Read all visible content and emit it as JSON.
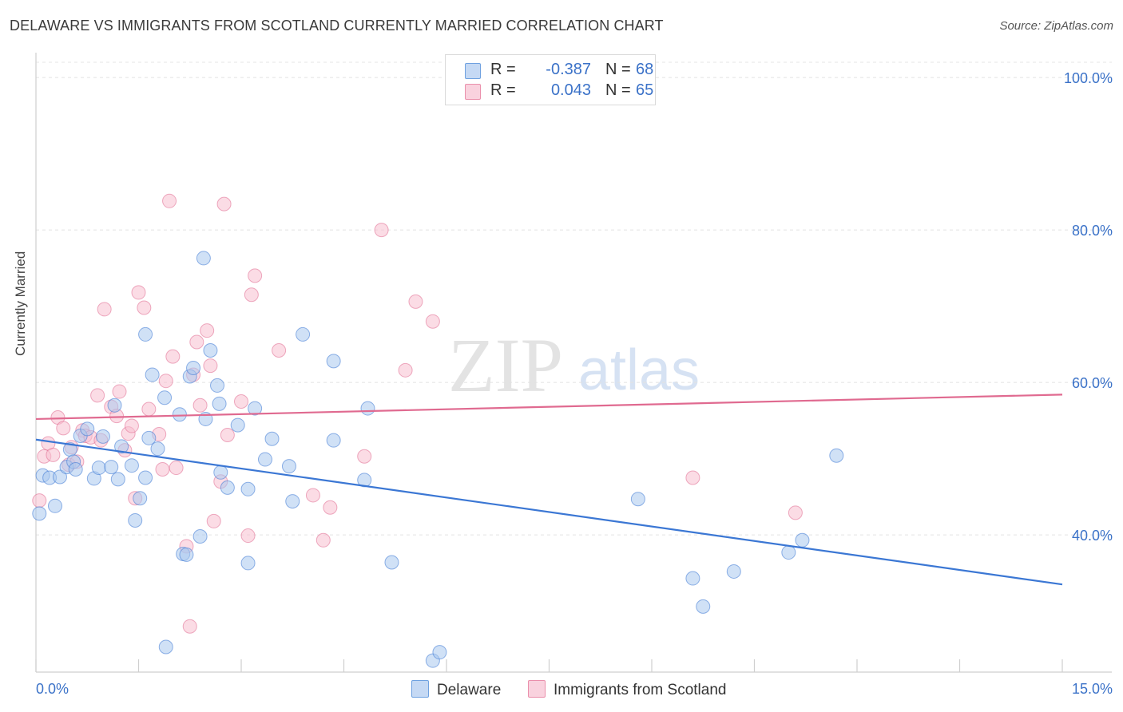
{
  "header": {
    "title": "DELAWARE VS IMMIGRANTS FROM SCOTLAND CURRENTLY MARRIED CORRELATION CHART",
    "source": "Source: ZipAtlas.com"
  },
  "watermark": {
    "zip": "ZIP",
    "atlas": "atlas"
  },
  "legend": {
    "rows": [
      {
        "r_label": "R =",
        "r_value": "-0.387",
        "n_label": "N =",
        "n_value": "68",
        "color": "#6fa1e0",
        "fill": "#c5d9f4"
      },
      {
        "r_label": "R =",
        "r_value": "0.043",
        "n_label": "N =",
        "n_value": "65",
        "color": "#ea8fab",
        "fill": "#f9d2de"
      }
    ]
  },
  "chart_data": {
    "type": "scatter",
    "title": "DELAWARE VS IMMIGRANTS FROM SCOTLAND CURRENTLY MARRIED CORRELATION CHART",
    "xlabel": "",
    "ylabel": "Currently Married",
    "xlim": [
      0,
      15
    ],
    "ylim": [
      22,
      102
    ],
    "x_tick_labels": [
      "0.0%",
      "15.0%"
    ],
    "y_ticks": [
      40,
      60,
      80,
      100
    ],
    "y_tick_labels": [
      "40.0%",
      "60.0%",
      "80.0%",
      "100.0%"
    ],
    "grid": true,
    "legend_position": "top-center",
    "series": [
      {
        "name": "Delaware",
        "color": "#3b77d4",
        "fill": "#a9c8ef",
        "trend": {
          "x": [
            0.0,
            15.0
          ],
          "y": [
            52.5,
            33.5
          ]
        },
        "points": [
          [
            0.05,
            42.8
          ],
          [
            0.1,
            47.8
          ],
          [
            0.2,
            47.5
          ],
          [
            0.28,
            43.8
          ],
          [
            0.35,
            47.6
          ],
          [
            0.45,
            48.9
          ],
          [
            0.5,
            51.2
          ],
          [
            0.55,
            49.6
          ],
          [
            0.58,
            48.6
          ],
          [
            0.65,
            53.0
          ],
          [
            0.75,
            53.9
          ],
          [
            0.85,
            47.4
          ],
          [
            0.92,
            48.8
          ],
          [
            0.98,
            52.9
          ],
          [
            1.1,
            48.9
          ],
          [
            1.15,
            57.0
          ],
          [
            1.2,
            47.3
          ],
          [
            1.25,
            51.6
          ],
          [
            1.4,
            49.1
          ],
          [
            1.45,
            41.9
          ],
          [
            1.52,
            44.8
          ],
          [
            1.6,
            47.5
          ],
          [
            1.6,
            66.3
          ],
          [
            1.65,
            52.7
          ],
          [
            1.7,
            61.0
          ],
          [
            1.78,
            51.3
          ],
          [
            1.88,
            58.0
          ],
          [
            1.9,
            25.3
          ],
          [
            2.1,
            55.8
          ],
          [
            2.15,
            37.5
          ],
          [
            2.2,
            37.4
          ],
          [
            2.25,
            60.8
          ],
          [
            2.3,
            61.9
          ],
          [
            2.4,
            39.8
          ],
          [
            2.45,
            76.3
          ],
          [
            2.48,
            55.2
          ],
          [
            2.55,
            64.2
          ],
          [
            2.65,
            59.6
          ],
          [
            2.68,
            57.2
          ],
          [
            2.7,
            48.2
          ],
          [
            2.8,
            46.2
          ],
          [
            2.95,
            54.4
          ],
          [
            3.1,
            46.0
          ],
          [
            3.1,
            36.3
          ],
          [
            3.2,
            56.6
          ],
          [
            3.35,
            49.9
          ],
          [
            3.45,
            52.6
          ],
          [
            3.7,
            49.0
          ],
          [
            3.75,
            44.4
          ],
          [
            3.9,
            66.3
          ],
          [
            4.35,
            52.4
          ],
          [
            4.35,
            62.8
          ],
          [
            4.8,
            47.2
          ],
          [
            4.85,
            56.6
          ],
          [
            5.2,
            36.4
          ],
          [
            5.8,
            23.5
          ],
          [
            5.9,
            24.6
          ],
          [
            8.8,
            44.7
          ],
          [
            9.6,
            34.3
          ],
          [
            9.75,
            30.6
          ],
          [
            10.2,
            35.2
          ],
          [
            11.0,
            37.7
          ],
          [
            11.2,
            39.3
          ],
          [
            11.7,
            50.4
          ]
        ]
      },
      {
        "name": "Immigrants from Scotland",
        "color": "#e06a90",
        "fill": "#f7c0d0",
        "trend": {
          "x": [
            0.0,
            15.0
          ],
          "y": [
            55.2,
            58.4
          ]
        },
        "points": [
          [
            0.05,
            44.5
          ],
          [
            0.12,
            50.3
          ],
          [
            0.18,
            52.0
          ],
          [
            0.25,
            50.5
          ],
          [
            0.32,
            55.4
          ],
          [
            0.4,
            54.0
          ],
          [
            0.48,
            49.2
          ],
          [
            0.52,
            51.5
          ],
          [
            0.6,
            49.6
          ],
          [
            0.68,
            53.7
          ],
          [
            0.72,
            53.0
          ],
          [
            0.8,
            52.8
          ],
          [
            0.9,
            58.3
          ],
          [
            0.95,
            52.4
          ],
          [
            1.0,
            69.6
          ],
          [
            1.1,
            56.8
          ],
          [
            1.18,
            55.6
          ],
          [
            1.22,
            58.8
          ],
          [
            1.3,
            51.1
          ],
          [
            1.35,
            53.3
          ],
          [
            1.4,
            54.3
          ],
          [
            1.45,
            44.8
          ],
          [
            1.5,
            71.8
          ],
          [
            1.58,
            69.8
          ],
          [
            1.65,
            56.5
          ],
          [
            1.8,
            53.2
          ],
          [
            1.85,
            48.6
          ],
          [
            1.9,
            60.2
          ],
          [
            1.95,
            83.8
          ],
          [
            2.0,
            63.4
          ],
          [
            2.05,
            48.8
          ],
          [
            2.2,
            38.5
          ],
          [
            2.25,
            28.0
          ],
          [
            2.3,
            61.0
          ],
          [
            2.35,
            65.3
          ],
          [
            2.4,
            57.0
          ],
          [
            2.5,
            66.8
          ],
          [
            2.55,
            62.2
          ],
          [
            2.6,
            41.8
          ],
          [
            2.7,
            47.0
          ],
          [
            2.75,
            83.4
          ],
          [
            2.8,
            53.1
          ],
          [
            3.0,
            57.5
          ],
          [
            3.1,
            39.9
          ],
          [
            3.15,
            71.5
          ],
          [
            3.2,
            74.0
          ],
          [
            3.55,
            64.2
          ],
          [
            4.05,
            45.2
          ],
          [
            4.2,
            39.3
          ],
          [
            4.3,
            43.6
          ],
          [
            4.8,
            50.3
          ],
          [
            5.05,
            80.0
          ],
          [
            5.4,
            61.6
          ],
          [
            5.55,
            70.6
          ],
          [
            5.8,
            68.0
          ],
          [
            9.6,
            47.5
          ],
          [
            11.1,
            42.9
          ]
        ]
      }
    ]
  }
}
